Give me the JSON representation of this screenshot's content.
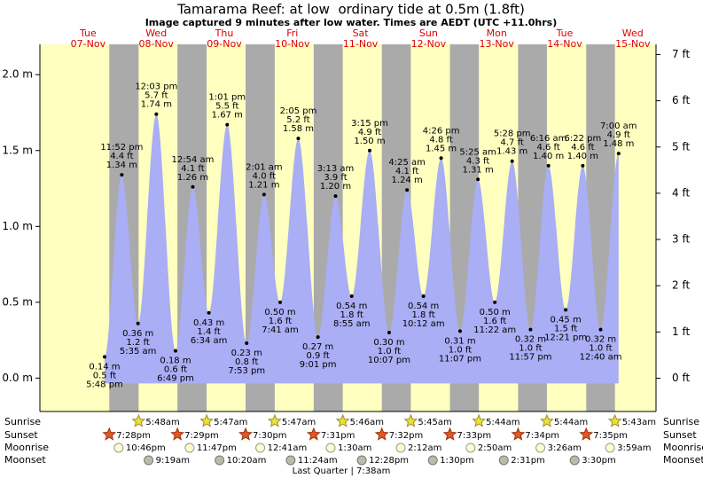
{
  "chart_data": {
    "type": "area",
    "title": "Tamarama Reef: at low  ordinary tide at 0.5m (1.8ft)",
    "subtitle": "Image captured 9 minutes after low water. Times are AEDT (UTC +11.0hrs)",
    "color": "#a9aef5",
    "day_color": "#ffffc0",
    "night_color": "#aaaaaa",
    "label_color": "#dd0000",
    "ylim": [
      -0.22,
      2.2
    ],
    "yticks": [
      {
        "value": 0,
        "label": "0.0 m"
      },
      {
        "value": 0.5,
        "label": "0.5 m"
      },
      {
        "value": 1,
        "label": "1.0 m"
      },
      {
        "value": 1.5,
        "label": "1.5 m"
      },
      {
        "value": 2,
        "label": "2.0 m"
      }
    ],
    "y2lim": [
      -0.72,
      7.22
    ],
    "y2ticks": [
      {
        "value": 0,
        "label": "0 ft"
      },
      {
        "value": 1,
        "label": "1 ft"
      },
      {
        "value": 2,
        "label": "2 ft"
      },
      {
        "value": 3,
        "label": "3 ft"
      },
      {
        "value": 4,
        "label": "4 ft"
      },
      {
        "value": 5,
        "label": "5 ft"
      },
      {
        "value": 6,
        "label": "6 ft"
      },
      {
        "value": 7,
        "label": "7 ft"
      }
    ],
    "row_labels": {
      "sunrise": "Sunrise",
      "sunset": "Sunset",
      "moonrise": "Moonrise",
      "moonset": "Moonset"
    },
    "moon_phase": "Last Quarter | 7:38am",
    "days": [
      {
        "weekday": "Tue",
        "date": "07-Nov",
        "sunrise": null,
        "sunset": "7:28pm",
        "moonrise": "10:46pm",
        "moonset": null,
        "tides": [
          {
            "time": "5:48 pm",
            "value": 0.14,
            "value_label": "0.14 m",
            "ft_label": "0.5 ft"
          },
          {
            "time": "11:52 pm",
            "value": 1.34,
            "value_label": "1.34 m",
            "ft_label": "4.4 ft"
          }
        ]
      },
      {
        "weekday": "Wed",
        "date": "08-Nov",
        "sunrise": "5:48am",
        "sunset": "7:29pm",
        "moonrise": "11:47pm",
        "moonset": "9:19am",
        "tides": [
          {
            "time": "5:35 am",
            "value": 0.36,
            "value_label": "0.36 m",
            "ft_label": "1.2 ft"
          },
          {
            "time": "12:03 pm",
            "value": 1.74,
            "value_label": "1.74 m",
            "ft_label": "5.7 ft"
          },
          {
            "time": "6:49 pm",
            "value": 0.18,
            "value_label": "0.18 m",
            "ft_label": "0.6 ft"
          }
        ]
      },
      {
        "weekday": "Thu",
        "date": "09-Nov",
        "sunrise": "5:47am",
        "sunset": "7:30pm",
        "moonrise": null,
        "moonset": "10:20am",
        "tides": [
          {
            "time": "12:54 am",
            "value": 1.26,
            "value_label": "1.26 m",
            "ft_label": "4.1 ft"
          },
          {
            "time": "6:34 am",
            "value": 0.43,
            "value_label": "0.43 m",
            "ft_label": "1.4 ft"
          },
          {
            "time": "1:01 pm",
            "value": 1.67,
            "value_label": "1.67 m",
            "ft_label": "5.5 ft"
          },
          {
            "time": "7:53 pm",
            "value": 0.23,
            "value_label": "0.23 m",
            "ft_label": "0.8 ft"
          }
        ]
      },
      {
        "weekday": "Fri",
        "date": "10-Nov",
        "sunrise": "5:47am",
        "sunset": "7:31pm",
        "moonrise": "12:41am",
        "moonset": "11:24am",
        "tides": [
          {
            "time": "2:01 am",
            "value": 1.21,
            "value_label": "1.21 m",
            "ft_label": "4.0 ft"
          },
          {
            "time": "7:41 am",
            "value": 0.5,
            "value_label": "0.50 m",
            "ft_label": "1.6 ft"
          },
          {
            "time": "2:05 pm",
            "value": 1.58,
            "value_label": "1.58 m",
            "ft_label": "5.2 ft"
          },
          {
            "time": "9:01 pm",
            "value": 0.27,
            "value_label": "0.27 m",
            "ft_label": "0.9 ft"
          }
        ]
      },
      {
        "weekday": "Sat",
        "date": "11-Nov",
        "sunrise": "5:46am",
        "sunset": "7:32pm",
        "moonrise": "1:30am",
        "moonset": "12:28pm",
        "tides": [
          {
            "time": "3:13 am",
            "value": 1.2,
            "value_label": "1.20 m",
            "ft_label": "3.9 ft"
          },
          {
            "time": "8:55 am",
            "value": 0.54,
            "value_label": "0.54 m",
            "ft_label": "1.8 ft"
          },
          {
            "time": "3:15 pm",
            "value": 1.5,
            "value_label": "1.50 m",
            "ft_label": "4.9 ft"
          },
          {
            "time": "10:07 pm",
            "value": 0.3,
            "value_label": "0.30 m",
            "ft_label": "1.0 ft"
          }
        ]
      },
      {
        "weekday": "Sun",
        "date": "12-Nov",
        "sunrise": "5:45am",
        "sunset": "7:33pm",
        "moonrise": "2:12am",
        "moonset": "1:30pm",
        "tides": [
          {
            "time": "4:25 am",
            "value": 1.24,
            "value_label": "1.24 m",
            "ft_label": "4.1 ft"
          },
          {
            "time": "10:12 am",
            "value": 0.54,
            "value_label": "0.54 m",
            "ft_label": "1.8 ft"
          },
          {
            "time": "4:26 pm",
            "value": 1.45,
            "value_label": "1.45 m",
            "ft_label": "4.8 ft"
          },
          {
            "time": "11:07 pm",
            "value": 0.31,
            "value_label": "0.31 m",
            "ft_label": "1.0 ft"
          }
        ]
      },
      {
        "weekday": "Mon",
        "date": "13-Nov",
        "sunrise": "5:44am",
        "sunset": "7:34pm",
        "moonrise": "2:50am",
        "moonset": "2:31pm",
        "tides": [
          {
            "time": "5:25 am",
            "value": 1.31,
            "value_label": "1.31 m",
            "ft_label": "4.3 ft"
          },
          {
            "time": "11:22 am",
            "value": 0.5,
            "value_label": "0.50 m",
            "ft_label": "1.6 ft"
          },
          {
            "time": "5:28 pm",
            "value": 1.43,
            "value_label": "1.43 m",
            "ft_label": "4.7 ft"
          },
          {
            "time": "11:57 pm",
            "value": 0.32,
            "value_label": "0.32 m",
            "ft_label": "1.0 ft"
          }
        ]
      },
      {
        "weekday": "Tue",
        "date": "14-Nov",
        "sunrise": "5:44am",
        "sunset": "7:35pm",
        "moonrise": "3:26am",
        "moonset": "3:30pm",
        "tides": [
          {
            "time": "6:16 am",
            "value": 1.4,
            "value_label": "1.40 m",
            "ft_label": "4.6 ft"
          },
          {
            "time": "12:21 pm",
            "value": 0.45,
            "value_label": "0.45 m",
            "ft_label": "1.5 ft"
          },
          {
            "time": "6:22 pm",
            "value": 1.4,
            "value_label": "1.40 m",
            "ft_label": "4.6 ft"
          }
        ]
      },
      {
        "weekday": "Wed",
        "date": "15-Nov",
        "sunrise": "5:43am",
        "sunset": null,
        "moonrise": "3:59am",
        "moonset": null,
        "tides": [
          {
            "time": "12:40 am",
            "value": 0.32,
            "value_label": "0.32 m",
            "ft_label": "1.0 ft"
          },
          {
            "time": "7:00 am",
            "value": 1.48,
            "value_label": "1.48 m",
            "ft_label": "4.9 ft"
          }
        ]
      }
    ]
  }
}
